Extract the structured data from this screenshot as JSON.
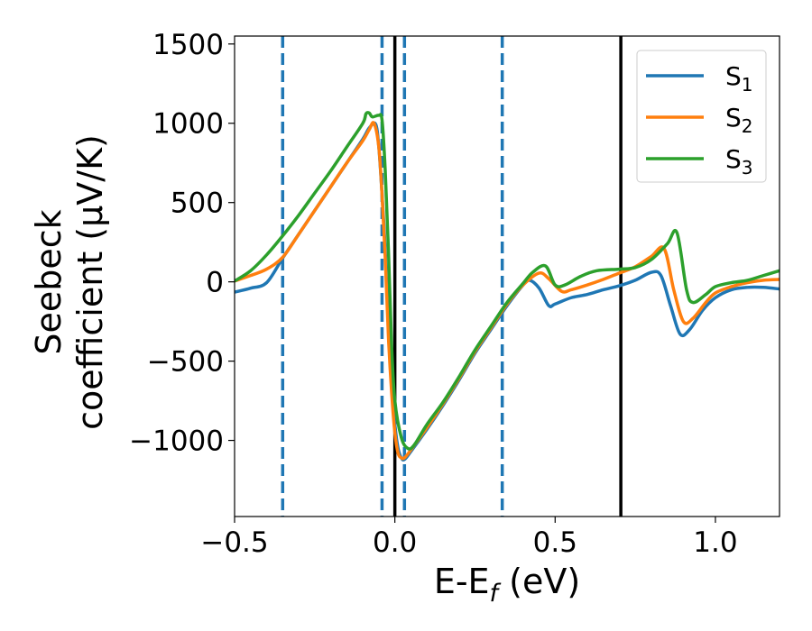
{
  "chart_data": {
    "type": "line",
    "xlabel": "E-E_f (eV)",
    "ylabel_line1": "Seebeck",
    "ylabel_line2": "coefficient  (μV/K)",
    "xlim": [
      -0.5,
      1.2
    ],
    "ylim": [
      -1480,
      1550
    ],
    "xticks": [
      -0.5,
      0.0,
      0.5,
      1.0
    ],
    "xtick_labels": [
      "−0.5",
      "0.0",
      "0.5",
      "1.0"
    ],
    "yticks": [
      -1000,
      -500,
      0,
      500,
      1000,
      1500
    ],
    "ytick_labels": [
      "−1000",
      "−500",
      "0",
      "500",
      "1000",
      "1500"
    ],
    "grid": false,
    "legend_position": "top-right",
    "vlines_dashed": {
      "color": "#1f77b4",
      "x": [
        -0.35,
        -0.04,
        0.03,
        0.335
      ]
    },
    "vlines_solid": {
      "color": "#000000",
      "x": [
        0.0,
        0.705
      ]
    },
    "series": [
      {
        "name": "S_1",
        "legend_main": "S",
        "legend_sub": "1",
        "color": "#1f77b4",
        "points": [
          [
            -0.5,
            -65
          ],
          [
            -0.45,
            -40
          ],
          [
            -0.4,
            -5
          ],
          [
            -0.35,
            150
          ],
          [
            -0.3,
            300
          ],
          [
            -0.25,
            450
          ],
          [
            -0.2,
            600
          ],
          [
            -0.15,
            750
          ],
          [
            -0.1,
            900
          ],
          [
            -0.08,
            970
          ],
          [
            -0.06,
            995
          ],
          [
            -0.05,
            850
          ],
          [
            -0.04,
            550
          ],
          [
            -0.03,
            200
          ],
          [
            -0.02,
            -300
          ],
          [
            -0.01,
            -650
          ],
          [
            0.0,
            -900
          ],
          [
            0.01,
            -1050
          ],
          [
            0.02,
            -1110
          ],
          [
            0.03,
            -1120
          ],
          [
            0.05,
            -1070
          ],
          [
            0.1,
            -930
          ],
          [
            0.15,
            -780
          ],
          [
            0.2,
            -620
          ],
          [
            0.25,
            -450
          ],
          [
            0.3,
            -300
          ],
          [
            0.35,
            -150
          ],
          [
            0.4,
            -20
          ],
          [
            0.42,
            10
          ],
          [
            0.45,
            -40
          ],
          [
            0.48,
            -150
          ],
          [
            0.5,
            -140
          ],
          [
            0.55,
            -100
          ],
          [
            0.6,
            -80
          ],
          [
            0.65,
            -50
          ],
          [
            0.7,
            -25
          ],
          [
            0.75,
            10
          ],
          [
            0.8,
            60
          ],
          [
            0.83,
            40
          ],
          [
            0.86,
            -150
          ],
          [
            0.89,
            -330
          ],
          [
            0.92,
            -300
          ],
          [
            0.96,
            -180
          ],
          [
            1.0,
            -100
          ],
          [
            1.05,
            -50
          ],
          [
            1.1,
            -35
          ],
          [
            1.15,
            -35
          ],
          [
            1.2,
            -45
          ]
        ]
      },
      {
        "name": "S_2",
        "legend_main": "S",
        "legend_sub": "2",
        "color": "#ff7f0e",
        "points": [
          [
            -0.5,
            5
          ],
          [
            -0.45,
            40
          ],
          [
            -0.4,
            80
          ],
          [
            -0.35,
            155
          ],
          [
            -0.3,
            300
          ],
          [
            -0.25,
            450
          ],
          [
            -0.2,
            600
          ],
          [
            -0.15,
            750
          ],
          [
            -0.1,
            890
          ],
          [
            -0.08,
            960
          ],
          [
            -0.065,
            1000
          ],
          [
            -0.05,
            850
          ],
          [
            -0.04,
            550
          ],
          [
            -0.03,
            150
          ],
          [
            -0.02,
            -350
          ],
          [
            -0.01,
            -700
          ],
          [
            0.0,
            -950
          ],
          [
            0.01,
            -1080
          ],
          [
            0.02,
            -1110
          ],
          [
            0.03,
            -1110
          ],
          [
            0.05,
            -1060
          ],
          [
            0.1,
            -920
          ],
          [
            0.15,
            -770
          ],
          [
            0.2,
            -610
          ],
          [
            0.25,
            -440
          ],
          [
            0.3,
            -290
          ],
          [
            0.35,
            -140
          ],
          [
            0.4,
            -20
          ],
          [
            0.45,
            55
          ],
          [
            0.48,
            20
          ],
          [
            0.52,
            -60
          ],
          [
            0.55,
            -50
          ],
          [
            0.6,
            -20
          ],
          [
            0.65,
            15
          ],
          [
            0.7,
            55
          ],
          [
            0.75,
            95
          ],
          [
            0.8,
            160
          ],
          [
            0.84,
            210
          ],
          [
            0.87,
            -50
          ],
          [
            0.9,
            -250
          ],
          [
            0.93,
            -230
          ],
          [
            0.97,
            -130
          ],
          [
            1.0,
            -70
          ],
          [
            1.05,
            -30
          ],
          [
            1.1,
            -5
          ],
          [
            1.15,
            10
          ],
          [
            1.2,
            15
          ]
        ]
      },
      {
        "name": "S_3",
        "legend_main": "S",
        "legend_sub": "3",
        "color": "#2ca02c",
        "points": [
          [
            -0.5,
            5
          ],
          [
            -0.45,
            70
          ],
          [
            -0.4,
            170
          ],
          [
            -0.35,
            290
          ],
          [
            -0.3,
            420
          ],
          [
            -0.25,
            560
          ],
          [
            -0.2,
            700
          ],
          [
            -0.15,
            850
          ],
          [
            -0.1,
            1000
          ],
          [
            -0.09,
            1060
          ],
          [
            -0.08,
            1065
          ],
          [
            -0.07,
            1040
          ],
          [
            -0.05,
            1050
          ],
          [
            -0.04,
            1020
          ],
          [
            -0.03,
            700
          ],
          [
            -0.02,
            200
          ],
          [
            -0.01,
            -400
          ],
          [
            0.0,
            -750
          ],
          [
            0.02,
            -980
          ],
          [
            0.04,
            -1050
          ],
          [
            0.06,
            -1030
          ],
          [
            0.1,
            -900
          ],
          [
            0.15,
            -760
          ],
          [
            0.2,
            -600
          ],
          [
            0.25,
            -430
          ],
          [
            0.3,
            -280
          ],
          [
            0.35,
            -130
          ],
          [
            0.4,
            -10
          ],
          [
            0.43,
            60
          ],
          [
            0.47,
            100
          ],
          [
            0.5,
            -20
          ],
          [
            0.53,
            -20
          ],
          [
            0.58,
            35
          ],
          [
            0.63,
            70
          ],
          [
            0.7,
            80
          ],
          [
            0.75,
            90
          ],
          [
            0.8,
            140
          ],
          [
            0.85,
            240
          ],
          [
            0.88,
            310
          ],
          [
            0.91,
            -50
          ],
          [
            0.93,
            -130
          ],
          [
            0.97,
            -80
          ],
          [
            1.0,
            -30
          ],
          [
            1.05,
            -5
          ],
          [
            1.1,
            10
          ],
          [
            1.15,
            40
          ],
          [
            1.2,
            70
          ]
        ]
      }
    ]
  }
}
